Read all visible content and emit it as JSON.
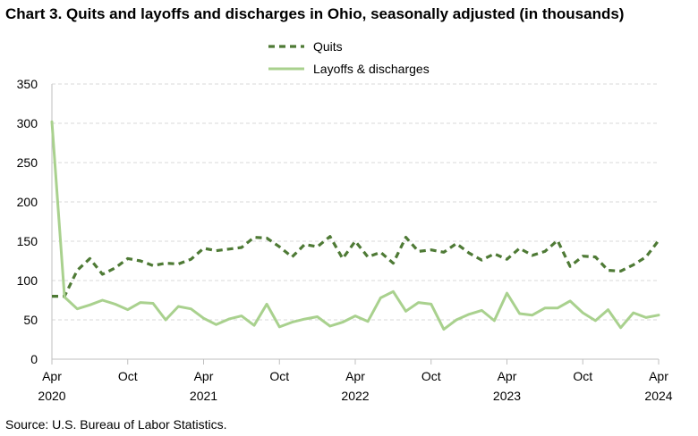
{
  "chart_data": {
    "type": "line",
    "title": "Chart 3. Quits and layoffs and discharges in Ohio, seasonally adjusted (in thousands)",
    "source": "Source: U.S. Bureau of Labor Statistics.",
    "xlabel": "",
    "ylabel": "",
    "ylim": [
      0,
      350
    ],
    "yticks": [
      0,
      50,
      100,
      150,
      200,
      250,
      300,
      350
    ],
    "x_start": "2020-04",
    "x_end": "2024-04",
    "x_tick_labels": [
      {
        "month": "Apr",
        "year": "2020"
      },
      {
        "month": "Oct",
        "year": ""
      },
      {
        "month": "Apr",
        "year": "2021"
      },
      {
        "month": "Oct",
        "year": ""
      },
      {
        "month": "Apr",
        "year": "2022"
      },
      {
        "month": "Oct",
        "year": ""
      },
      {
        "month": "Apr",
        "year": "2023"
      },
      {
        "month": "Oct",
        "year": ""
      },
      {
        "month": "Apr",
        "year": "2024"
      }
    ],
    "grid": true,
    "legend_position": "top-center",
    "series": [
      {
        "name": "Quits",
        "style": "dashed",
        "color": "#4e7a35",
        "values": [
          80,
          80,
          113,
          128,
          108,
          116,
          128,
          125,
          119,
          122,
          121,
          127,
          141,
          138,
          140,
          142,
          155,
          154,
          143,
          130,
          146,
          143,
          156,
          128,
          150,
          130,
          136,
          122,
          155,
          137,
          139,
          136,
          147,
          135,
          126,
          134,
          127,
          141,
          132,
          137,
          151,
          118,
          131,
          130,
          113,
          112,
          120,
          130,
          151
        ]
      },
      {
        "name": "Layoffs & discharges",
        "style": "solid",
        "color": "#a9d18e",
        "values": [
          302,
          79,
          64,
          69,
          75,
          70,
          63,
          72,
          71,
          50,
          67,
          64,
          52,
          44,
          51,
          55,
          43,
          70,
          41,
          47,
          51,
          54,
          42,
          47,
          55,
          48,
          78,
          86,
          61,
          72,
          70,
          38,
          50,
          57,
          62,
          49,
          84,
          58,
          56,
          65,
          65,
          74,
          59,
          49,
          63,
          40,
          59,
          53,
          56
        ]
      }
    ]
  }
}
